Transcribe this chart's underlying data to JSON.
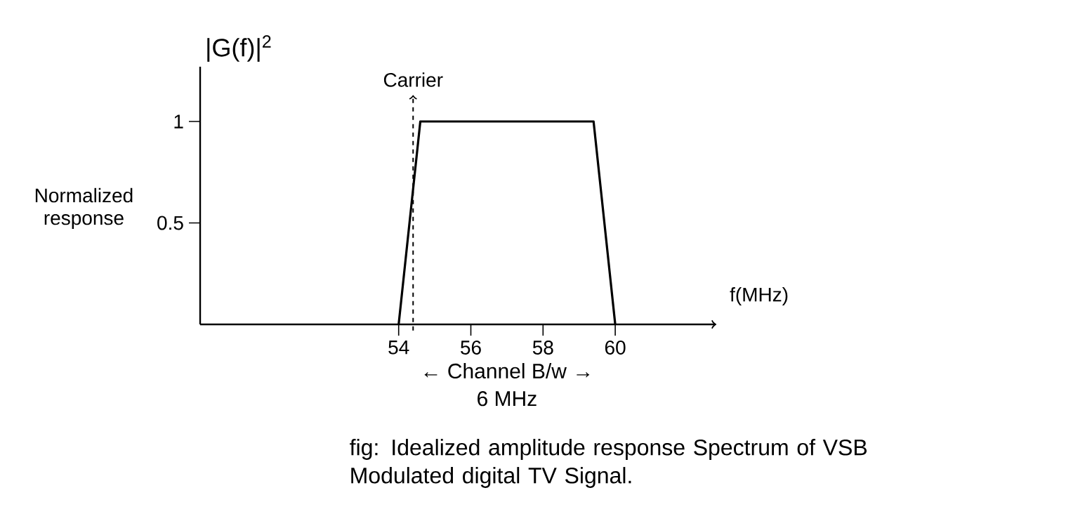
{
  "chart_data": {
    "type": "line",
    "xlabel": "f(MHz)",
    "ylabel": "Normalized response",
    "annotations": [
      "|G(f)|$^{2}$",
      "← Channel B/w →",
      "6 MHz",
      "fig: Idealized amplitude response Spectrum of VSB Modulated digital TV Signal."
    ],
    "x": [
      54,
      54.6,
      59.4,
      60
    ],
    "series": [
      {
        "color": "#000000",
        "values": [
          0,
          1,
          1,
          0
        ]
      }
    ],
    "xlim": [
      48.5,
      62.8
    ],
    "ylim": [
      0,
      1.27
    ],
    "xticks": [
      54,
      56,
      58,
      60
    ],
    "yticks": [
      0.5,
      1
    ],
    "ref_lines": [
      {
        "axis": "x",
        "value": 54.4,
        "label": "Carrier",
        "line_style": "dashed"
      }
    ],
    "marker": "none",
    "line_style": "solid"
  }
}
